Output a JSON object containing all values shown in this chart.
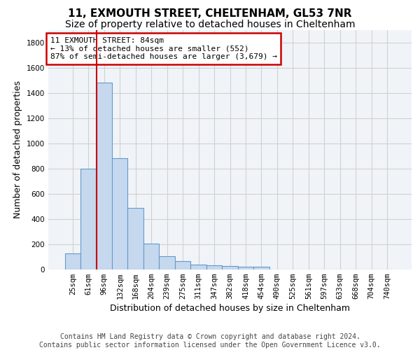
{
  "title_line1": "11, EXMOUTH STREET, CHELTENHAM, GL53 7NR",
  "title_line2": "Size of property relative to detached houses in Cheltenham",
  "xlabel": "Distribution of detached houses by size in Cheltenham",
  "ylabel": "Number of detached properties",
  "categories": [
    "25sqm",
    "61sqm",
    "96sqm",
    "132sqm",
    "168sqm",
    "204sqm",
    "239sqm",
    "275sqm",
    "311sqm",
    "347sqm",
    "382sqm",
    "418sqm",
    "454sqm",
    "490sqm",
    "525sqm",
    "561sqm",
    "597sqm",
    "633sqm",
    "668sqm",
    "704sqm",
    "740sqm"
  ],
  "values": [
    125,
    800,
    1480,
    880,
    490,
    205,
    105,
    65,
    40,
    35,
    30,
    20,
    20,
    0,
    0,
    0,
    0,
    0,
    0,
    0,
    0
  ],
  "bar_color": "#c5d8ed",
  "bar_edgecolor": "#6699cc",
  "grid_color": "#d0d0d0",
  "annotation_box_text": "11 EXMOUTH STREET: 84sqm\n← 13% of detached houses are smaller (552)\n87% of semi-detached houses are larger (3,679) →",
  "annotation_box_color": "#ffffff",
  "annotation_box_edgecolor": "#cc0000",
  "vline_x": 1.5,
  "vline_color": "#cc0000",
  "ylim": [
    0,
    1900
  ],
  "yticks": [
    0,
    200,
    400,
    600,
    800,
    1000,
    1200,
    1400,
    1600,
    1800
  ],
  "footer_text": "Contains HM Land Registry data © Crown copyright and database right 2024.\nContains public sector information licensed under the Open Government Licence v3.0.",
  "title_fontsize": 11,
  "subtitle_fontsize": 10,
  "axis_label_fontsize": 9,
  "tick_fontsize": 7.5,
  "annotation_fontsize": 8,
  "footer_fontsize": 7
}
